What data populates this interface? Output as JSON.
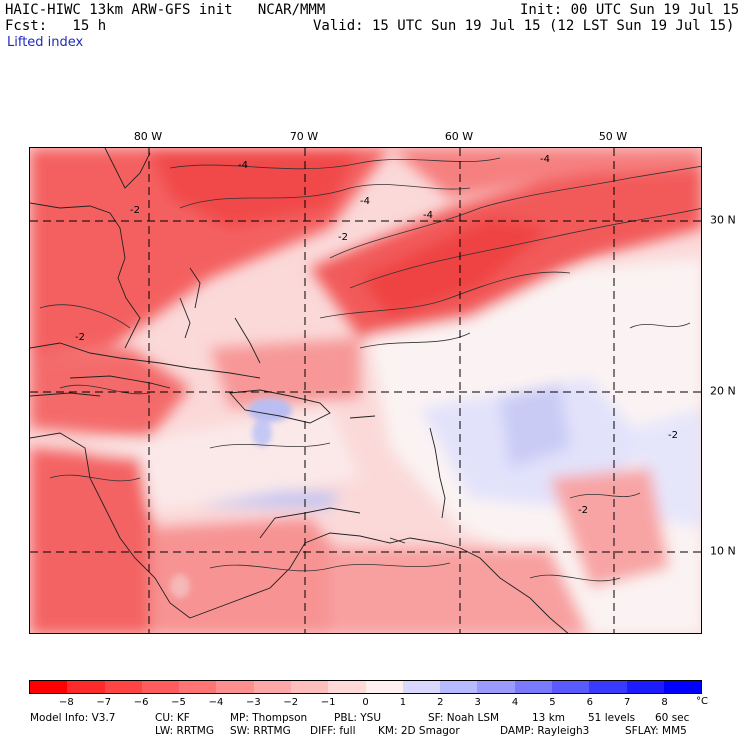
{
  "header": {
    "model_title": "HAIC-HIWC 13km ARW-GFS init   NCAR/MMM",
    "init": "Init: 00 UTC Sun 19 Jul 15",
    "fcst": "Fcst:   15 h",
    "valid": "Valid: 15 UTC Sun 19 Jul 15 (12 LST Sun 19 Jul 15)",
    "field": "Lifted index"
  },
  "map": {
    "lon_labels": [
      "80 W",
      "70 W",
      "60 W",
      "50 W"
    ],
    "lat_labels": [
      "30 N",
      "20 N",
      "10 N"
    ],
    "contour_labels": [
      "-4",
      "-4",
      "-4",
      "-2",
      "-2",
      "-4",
      "-2",
      "-2",
      "-2"
    ],
    "colors": {
      "strong_neg": "#f03c3c",
      "mid_neg": "#f77575",
      "weak_neg": "#fbb2b2",
      "faint_neg": "#fde2e2",
      "neutral": "#fbf5f5",
      "weak_pos": "#d8d8fb",
      "mid_pos": "#aeb0f4"
    }
  },
  "colorbar": {
    "unit": "°C",
    "ticks": [
      "−8",
      "−7",
      "−6",
      "−5",
      "−4",
      "−3",
      "−2",
      "−1",
      "0",
      "1",
      "2",
      "3",
      "4",
      "5",
      "6",
      "7",
      "8"
    ],
    "colors": [
      "#ff0000",
      "#ff2a2a",
      "#ff4444",
      "#ff5d5d",
      "#ff7575",
      "#ff8e8e",
      "#ffa6a6",
      "#ffbebe",
      "#ffd8d8",
      "#fff0f0",
      "#d9d9ff",
      "#b9b9ff",
      "#9a9aff",
      "#7a7aff",
      "#5a5aff",
      "#3a3aff",
      "#1c1cff",
      "#0000ff"
    ]
  },
  "footer": {
    "line1": [
      "Model Info: V3.7",
      "CU: KF",
      "MP: Thompson",
      "PBL: YSU",
      "SF: Noah LSM",
      "13 km",
      "51 levels",
      "60 sec"
    ],
    "line2": [
      "LW: RRTMG",
      "SW: RRTMG",
      "DIFF: full",
      "KM: 2D Smagor",
      "DAMP: Rayleigh3",
      "SFLAY: MM5"
    ]
  }
}
